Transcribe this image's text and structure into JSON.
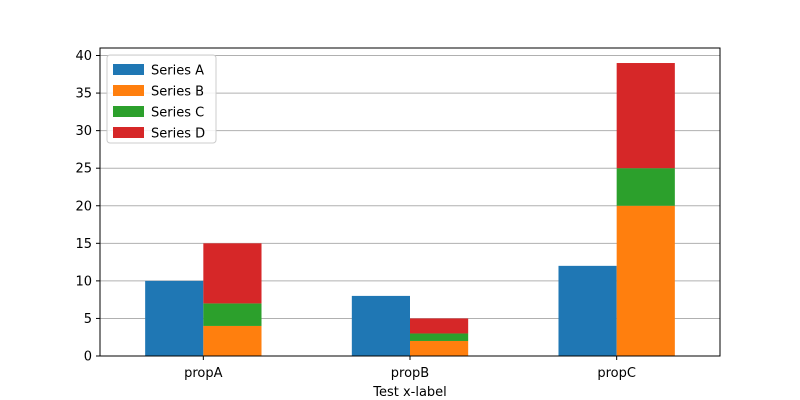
{
  "chart_data": {
    "type": "bar",
    "categories": [
      "propA",
      "propB",
      "propC"
    ],
    "series": [
      {
        "name": "Series A",
        "values": [
          10,
          8,
          12
        ],
        "color": "#1f77b4",
        "stack": "left",
        "base": null
      },
      {
        "name": "Series B",
        "values": [
          4,
          2,
          20
        ],
        "color": "#ff7f0e",
        "stack": "right",
        "base": null
      },
      {
        "name": "Series C",
        "values": [
          3,
          1,
          5
        ],
        "color": "#2ca02c",
        "stack": "right",
        "base": "Series B"
      },
      {
        "name": "Series D",
        "values": [
          8,
          2,
          14
        ],
        "color": "#d62728",
        "stack": "right",
        "base": "Series C"
      }
    ],
    "xlabel": "Test x-label",
    "ylabel": "",
    "ylim": [
      0,
      41
    ],
    "yticks": [
      0,
      5,
      10,
      15,
      20,
      25,
      30,
      35,
      40
    ],
    "grid": "horizontal",
    "legend_position": "top-left"
  }
}
